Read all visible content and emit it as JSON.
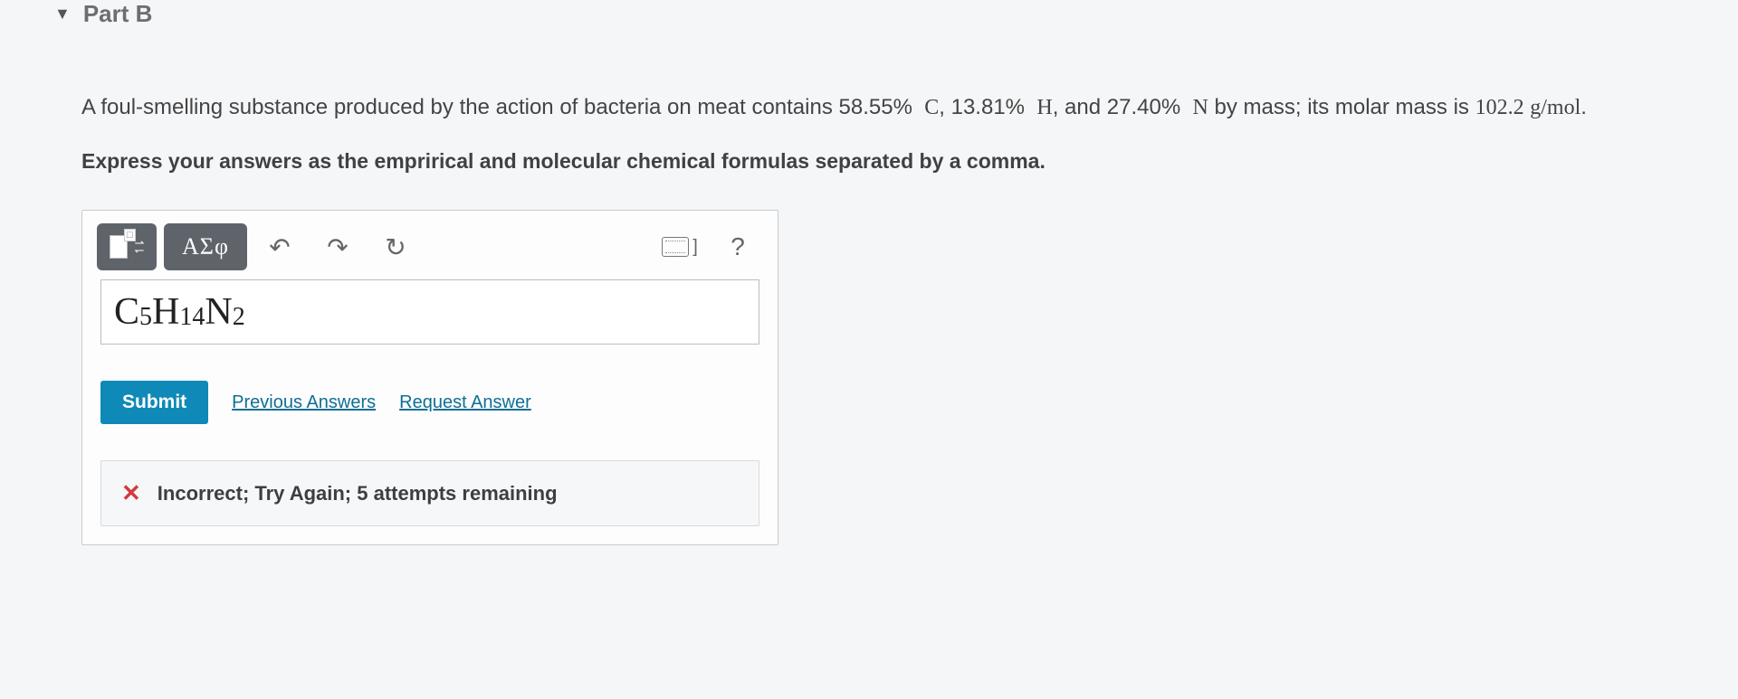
{
  "part": {
    "label": "Part B"
  },
  "question": {
    "intro": "A foul-smelling substance produced by the action of bacteria on meat contains ",
    "pct_c": "58.55",
    "sym_c": "C",
    "pct_h": "13.81",
    "sym_h": "H",
    "pct_n": "27.40",
    "sym_n": "N",
    "tail": " by mass; its molar mass is ",
    "molar_mass": "102.2",
    "molar_unit": "g/mol",
    "period": "."
  },
  "instruction": "Express your answers as the emprirical and molecular chemical formulas separated by a comma.",
  "toolbar": {
    "templates": "▭",
    "greek": "ΑΣφ",
    "undo": "↶",
    "redo": "↷",
    "reset": "↻",
    "keyboard_bracket": "]",
    "help": "?"
  },
  "answer": {
    "c_sym": "C",
    "c_sub": "5",
    "h_sym": "H",
    "h_sub": "14",
    "n_sym": "N",
    "n_sub": "2"
  },
  "actions": {
    "submit": "Submit",
    "previous": "Previous Answers",
    "request": "Request Answer"
  },
  "feedback": {
    "icon": "✕",
    "text": "Incorrect; Try Again; 5 attempts remaining"
  },
  "colors": {
    "accent": "#0f89b7",
    "error": "#d23b3b",
    "toolbar_dark": "#5f646b"
  }
}
